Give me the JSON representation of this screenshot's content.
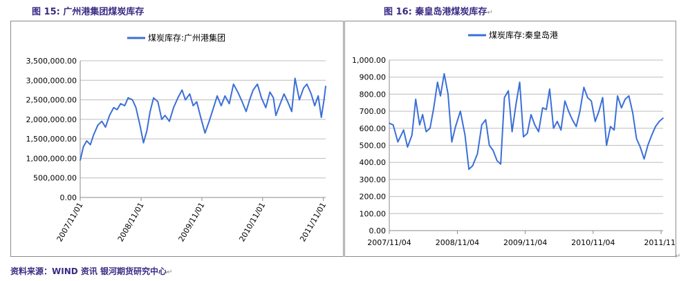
{
  "captions": {
    "left": "图 15:  广州港集团煤炭库存",
    "right": "图 16:  秦皇岛港煤炭库存",
    "source": "资料来源：WIND 资讯   银河期货研究中心"
  },
  "colors": {
    "series": "#3a6fd8",
    "grid": "#bcbcbc",
    "axis": "#8a8a8a",
    "caption": "#3b2a84"
  },
  "chart_data": [
    {
      "type": "line",
      "title": "",
      "xlabel": "",
      "ylabel": "",
      "legend_position": "top-center",
      "grid": true,
      "ylim": [
        0,
        3500000
      ],
      "yticks": [
        "0.00",
        "500,000.00",
        "1,000,000.00",
        "1,500,000.00",
        "2,000,000.00",
        "2,500,000.00",
        "3,000,000.00",
        "3,500,000.00"
      ],
      "xticks": [
        "2007/11/01",
        "2008/11/01",
        "2009/11/01",
        "2010/11/01",
        "2011/11/01"
      ],
      "xlim": [
        "2007/11/01",
        "2011/11/15"
      ],
      "series": [
        {
          "name": "煤炭库存:广州港集团",
          "x": [
            "2007/11/01",
            "2007/11/20",
            "2007/12/10",
            "2008/01/01",
            "2008/01/20",
            "2008/02/15",
            "2008/03/10",
            "2008/04/01",
            "2008/04/25",
            "2008/05/20",
            "2008/06/10",
            "2008/07/01",
            "2008/07/25",
            "2008/08/15",
            "2008/09/10",
            "2008/10/01",
            "2008/10/25",
            "2008/11/15",
            "2008/12/05",
            "2008/12/25",
            "2009/01/15",
            "2009/02/10",
            "2009/03/05",
            "2009/03/25",
            "2009/04/20",
            "2009/05/15",
            "2009/06/10",
            "2009/07/05",
            "2009/07/25",
            "2009/08/20",
            "2009/09/10",
            "2009/10/01",
            "2009/10/25",
            "2009/11/20",
            "2009/12/15",
            "2010/01/10",
            "2010/02/01",
            "2010/02/25",
            "2010/03/20",
            "2010/04/15",
            "2010/05/10",
            "2010/06/05",
            "2010/07/01",
            "2010/07/25",
            "2010/08/15",
            "2010/09/05",
            "2010/10/01",
            "2010/10/25",
            "2010/11/20",
            "2010/12/15",
            "2011/01/05",
            "2011/01/20",
            "2011/02/15",
            "2011/03/10",
            "2011/04/01",
            "2011/04/25",
            "2011/05/15",
            "2011/06/10",
            "2011/07/05",
            "2011/07/25",
            "2011/08/20",
            "2011/09/10",
            "2011/10/01",
            "2011/10/20",
            "2011/11/05",
            "2011/11/15"
          ],
          "values": [
            950000,
            1300000,
            1450000,
            1350000,
            1600000,
            1850000,
            1950000,
            1800000,
            2100000,
            2300000,
            2250000,
            2400000,
            2350000,
            2550000,
            2500000,
            2300000,
            1850000,
            1400000,
            1700000,
            2200000,
            2550000,
            2450000,
            2000000,
            2100000,
            1950000,
            2300000,
            2550000,
            2750000,
            2500000,
            2650000,
            2350000,
            2450000,
            2050000,
            1650000,
            1950000,
            2300000,
            2600000,
            2350000,
            2600000,
            2400000,
            2900000,
            2700000,
            2450000,
            2200000,
            2500000,
            2750000,
            2900000,
            2550000,
            2300000,
            2700000,
            2550000,
            2100000,
            2400000,
            2650000,
            2450000,
            2200000,
            3050000,
            2500000,
            2800000,
            2900000,
            2650000,
            2350000,
            2600000,
            2050000,
            2500000,
            2850000
          ]
        }
      ]
    },
    {
      "type": "line",
      "title": "",
      "xlabel": "",
      "ylabel": "",
      "legend_position": "top-center",
      "grid": true,
      "ylim": [
        0,
        1000
      ],
      "yticks": [
        "0.00",
        "100.00",
        "200.00",
        "300.00",
        "400.00",
        "500.00",
        "600.00",
        "700.00",
        "800.00",
        "900.00",
        "1,000.00"
      ],
      "xticks": [
        "2007/11/04",
        "2008/11/04",
        "2009/11/04",
        "2010/11/04",
        "2011/11/"
      ],
      "xlim": [
        "2007/11/04",
        "2011/11/15"
      ],
      "series": [
        {
          "name": "煤炭库存:秦皇岛港",
          "x": [
            "2007/11/04",
            "2007/11/25",
            "2007/12/20",
            "2008/01/20",
            "2008/02/10",
            "2008/03/05",
            "2008/03/25",
            "2008/04/15",
            "2008/05/01",
            "2008/05/20",
            "2008/06/10",
            "2008/06/30",
            "2008/07/20",
            "2008/08/05",
            "2008/08/25",
            "2008/09/15",
            "2008/10/05",
            "2008/10/25",
            "2008/11/20",
            "2008/12/15",
            "2009/01/05",
            "2009/01/25",
            "2009/02/20",
            "2009/03/15",
            "2009/04/05",
            "2009/04/25",
            "2009/05/15",
            "2009/06/05",
            "2009/06/25",
            "2009/07/15",
            "2009/08/05",
            "2009/08/25",
            "2009/09/15",
            "2009/10/05",
            "2009/10/25",
            "2009/11/15",
            "2009/12/05",
            "2009/12/25",
            "2010/01/15",
            "2010/02/05",
            "2010/02/25",
            "2010/03/15",
            "2010/04/05",
            "2010/04/25",
            "2010/05/15",
            "2010/06/05",
            "2010/06/25",
            "2010/07/15",
            "2010/08/05",
            "2010/08/25",
            "2010/09/15",
            "2010/10/05",
            "2010/10/25",
            "2010/11/15",
            "2010/12/05",
            "2010/12/25",
            "2011/01/15",
            "2011/02/05",
            "2011/02/25",
            "2011/03/15",
            "2011/04/05",
            "2011/04/25",
            "2011/05/15",
            "2011/06/05",
            "2011/06/25",
            "2011/07/15",
            "2011/08/05",
            "2011/08/25",
            "2011/09/15",
            "2011/10/05",
            "2011/10/25",
            "2011/11/15"
          ],
          "values": [
            630,
            620,
            520,
            590,
            490,
            560,
            770,
            620,
            680,
            580,
            600,
            720,
            870,
            790,
            920,
            800,
            520,
            610,
            700,
            560,
            360,
            380,
            450,
            620,
            650,
            500,
            470,
            410,
            390,
            780,
            820,
            580,
            740,
            870,
            550,
            570,
            680,
            620,
            580,
            720,
            710,
            830,
            600,
            640,
            590,
            760,
            700,
            650,
            610,
            700,
            840,
            780,
            760,
            640,
            700,
            780,
            500,
            610,
            590,
            790,
            720,
            770,
            790,
            690,
            540,
            490,
            420,
            500,
            560,
            610,
            640,
            660
          ]
        }
      ]
    }
  ]
}
